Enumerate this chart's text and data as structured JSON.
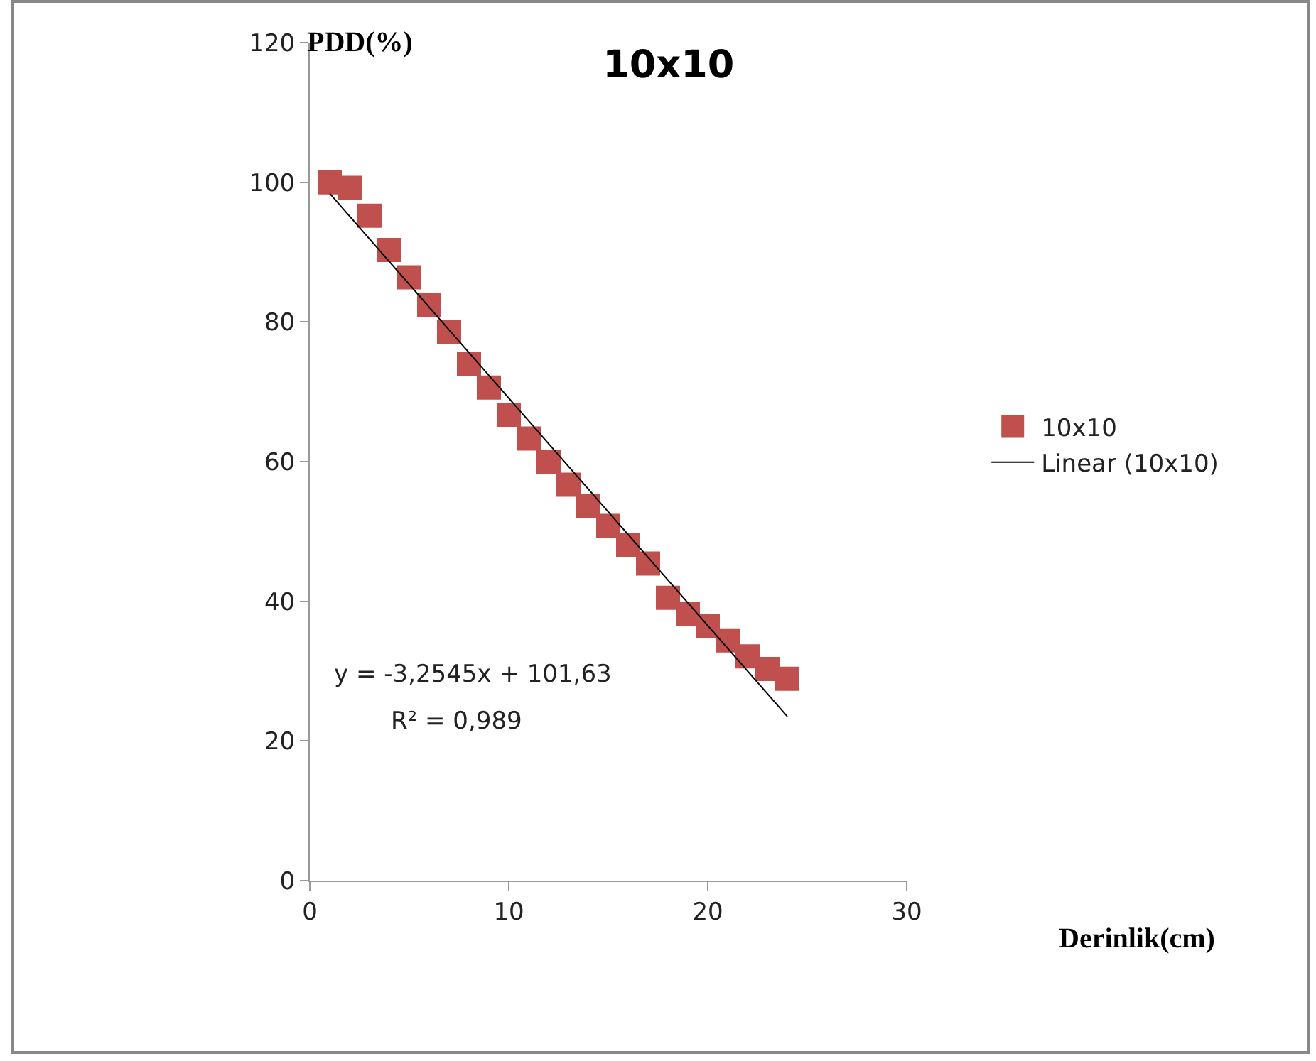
{
  "chart_data": {
    "type": "scatter",
    "title": "10x10",
    "xlabel": "Derinlik(cm)",
    "ylabel": "PDD(%)",
    "x": [
      1,
      2,
      3,
      4,
      5,
      6,
      7,
      8,
      9,
      10,
      11,
      12,
      13,
      14,
      15,
      16,
      17,
      18,
      19,
      20,
      21,
      22,
      23,
      24
    ],
    "series": [
      {
        "name": "10x10",
        "color": "#c0504d",
        "marker": "square",
        "values": [
          100,
          99.2,
          95.2,
          90.3,
          86.4,
          82.4,
          78.5,
          74,
          70.6,
          66.7,
          63.3,
          60,
          56.7,
          53.7,
          50.8,
          48,
          45.4,
          40.5,
          38.2,
          36.4,
          34.4,
          32.1,
          30.3,
          28.9
        ]
      },
      {
        "name": "Linear (10x10)",
        "color": "#000000",
        "type": "line",
        "x": [
          1,
          24
        ],
        "values": [
          98.4,
          23.5
        ]
      }
    ],
    "xlim": [
      0,
      30
    ],
    "xticks": [
      0,
      10,
      20,
      30
    ],
    "ylim": [
      0,
      120
    ],
    "yticks": [
      0,
      20,
      40,
      60,
      80,
      100,
      120
    ],
    "grid": false,
    "legend": "right",
    "annotations": [
      "y = -3,2545x + 101,63",
      "R² = 0,989"
    ]
  }
}
